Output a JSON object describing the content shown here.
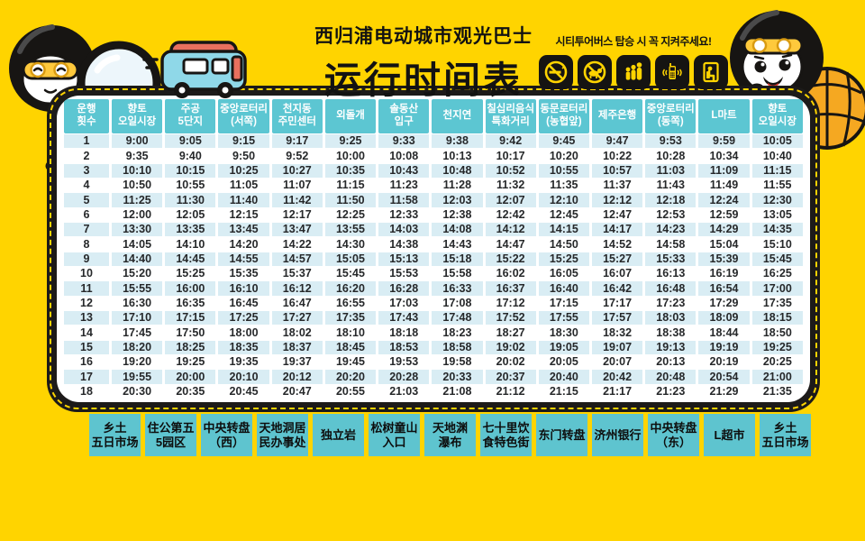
{
  "colors": {
    "background": "#ffd400",
    "panel_border": "#1c1a19",
    "header_cell": "#5cc6d2",
    "row_tint": "#d9edf4",
    "station_zh_cell": "#5ec4cf",
    "road_dash": "#ffd400",
    "bus_body": "#8fd8e8",
    "bus_roof": "#e8705e",
    "mascot_float": "#f5a821",
    "goggles": "#ffc93c"
  },
  "header": {
    "title_line1": "西归浦电动城市观光巴士",
    "title_line2": "运行时间表",
    "notice": "시티투어버스 탑승 시 꼭 지켜주세요!",
    "rule_icons": [
      "no-smoking-icon",
      "no-pets-icon",
      "queue-in-line-icon",
      "phone-silent-icon",
      "priority-seat-icon"
    ]
  },
  "timetable": {
    "corner_header": "운행\n횟수",
    "stations_ko": [
      "향토\n오일시장",
      "주공\n5단지",
      "중앙로터리\n(서쪽)",
      "천지동\n주민센터",
      "외돌개",
      "솔동산\n입구",
      "천지연",
      "칠십리음식\n특화거리",
      "동문로터리\n(농협앞)",
      "제주은행",
      "중앙로터리\n(동쪽)",
      "L마트",
      "향토\n오일시장"
    ],
    "stations_zh": [
      "乡土\n五日市场",
      "住公第五\n5园区",
      "中央转盘\n（西）",
      "天地洞居\n民办事处",
      "独立岩",
      "松树童山\n入口",
      "天地渊\n瀑布",
      "七十里饮\n食特色街",
      "东门转盘",
      "济州银行",
      "中央转盘\n（东）",
      "L超市",
      "乡土\n五日市场"
    ],
    "rows": [
      {
        "no": "1",
        "times": [
          "9:00",
          "9:05",
          "9:15",
          "9:17",
          "9:25",
          "9:33",
          "9:38",
          "9:42",
          "9:45",
          "9:47",
          "9:53",
          "9:59",
          "10:05"
        ]
      },
      {
        "no": "2",
        "times": [
          "9:35",
          "9:40",
          "9:50",
          "9:52",
          "10:00",
          "10:08",
          "10:13",
          "10:17",
          "10:20",
          "10:22",
          "10:28",
          "10:34",
          "10:40"
        ]
      },
      {
        "no": "3",
        "times": [
          "10:10",
          "10:15",
          "10:25",
          "10:27",
          "10:35",
          "10:43",
          "10:48",
          "10:52",
          "10:55",
          "10:57",
          "11:03",
          "11:09",
          "11:15"
        ]
      },
      {
        "no": "4",
        "times": [
          "10:50",
          "10:55",
          "11:05",
          "11:07",
          "11:15",
          "11:23",
          "11:28",
          "11:32",
          "11:35",
          "11:37",
          "11:43",
          "11:49",
          "11:55"
        ]
      },
      {
        "no": "5",
        "times": [
          "11:25",
          "11:30",
          "11:40",
          "11:42",
          "11:50",
          "11:58",
          "12:03",
          "12:07",
          "12:10",
          "12:12",
          "12:18",
          "12:24",
          "12:30"
        ]
      },
      {
        "no": "6",
        "times": [
          "12:00",
          "12:05",
          "12:15",
          "12:17",
          "12:25",
          "12:33",
          "12:38",
          "12:42",
          "12:45",
          "12:47",
          "12:53",
          "12:59",
          "13:05"
        ]
      },
      {
        "no": "7",
        "times": [
          "13:30",
          "13:35",
          "13:45",
          "13:47",
          "13:55",
          "14:03",
          "14:08",
          "14:12",
          "14:15",
          "14:17",
          "14:23",
          "14:29",
          "14:35"
        ]
      },
      {
        "no": "8",
        "times": [
          "14:05",
          "14:10",
          "14:20",
          "14:22",
          "14:30",
          "14:38",
          "14:43",
          "14:47",
          "14:50",
          "14:52",
          "14:58",
          "15:04",
          "15:10"
        ]
      },
      {
        "no": "9",
        "times": [
          "14:40",
          "14:45",
          "14:55",
          "14:57",
          "15:05",
          "15:13",
          "15:18",
          "15:22",
          "15:25",
          "15:27",
          "15:33",
          "15:39",
          "15:45"
        ]
      },
      {
        "no": "10",
        "times": [
          "15:20",
          "15:25",
          "15:35",
          "15:37",
          "15:45",
          "15:53",
          "15:58",
          "16:02",
          "16:05",
          "16:07",
          "16:13",
          "16:19",
          "16:25"
        ]
      },
      {
        "no": "11",
        "times": [
          "15:55",
          "16:00",
          "16:10",
          "16:12",
          "16:20",
          "16:28",
          "16:33",
          "16:37",
          "16:40",
          "16:42",
          "16:48",
          "16:54",
          "17:00"
        ]
      },
      {
        "no": "12",
        "times": [
          "16:30",
          "16:35",
          "16:45",
          "16:47",
          "16:55",
          "17:03",
          "17:08",
          "17:12",
          "17:15",
          "17:17",
          "17:23",
          "17:29",
          "17:35"
        ]
      },
      {
        "no": "13",
        "times": [
          "17:10",
          "17:15",
          "17:25",
          "17:27",
          "17:35",
          "17:43",
          "17:48",
          "17:52",
          "17:55",
          "17:57",
          "18:03",
          "18:09",
          "18:15"
        ]
      },
      {
        "no": "14",
        "times": [
          "17:45",
          "17:50",
          "18:00",
          "18:02",
          "18:10",
          "18:18",
          "18:23",
          "18:27",
          "18:30",
          "18:32",
          "18:38",
          "18:44",
          "18:50"
        ]
      },
      {
        "no": "15",
        "times": [
          "18:20",
          "18:25",
          "18:35",
          "18:37",
          "18:45",
          "18:53",
          "18:58",
          "19:02",
          "19:05",
          "19:07",
          "19:13",
          "19:19",
          "19:25"
        ]
      },
      {
        "no": "16",
        "times": [
          "19:20",
          "19:25",
          "19:35",
          "19:37",
          "19:45",
          "19:53",
          "19:58",
          "20:02",
          "20:05",
          "20:07",
          "20:13",
          "20:19",
          "20:25"
        ]
      },
      {
        "no": "17",
        "times": [
          "19:55",
          "20:00",
          "20:10",
          "20:12",
          "20:20",
          "20:28",
          "20:33",
          "20:37",
          "20:40",
          "20:42",
          "20:48",
          "20:54",
          "21:00"
        ]
      },
      {
        "no": "18",
        "times": [
          "20:30",
          "20:35",
          "20:45",
          "20:47",
          "20:55",
          "21:03",
          "21:08",
          "21:12",
          "21:15",
          "21:17",
          "21:23",
          "21:29",
          "21:35"
        ]
      }
    ]
  }
}
